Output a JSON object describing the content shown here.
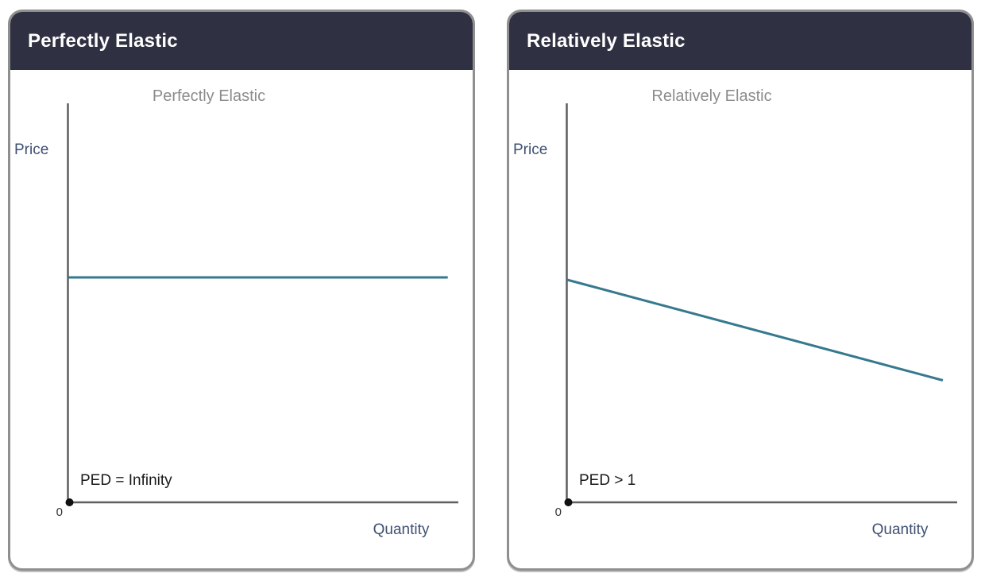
{
  "colors": {
    "header_bg": "#2f3142",
    "header_text": "#ffffff",
    "card_border": "#8f8f8f",
    "chart_title": "#8c8c8c",
    "axis_label": "#3f5072",
    "axis_line": "#5f5f5f",
    "curve": "#36798f",
    "annotation": "#1a1a1a",
    "origin_dot": "#111111"
  },
  "cards": [
    {
      "header": "Perfectly Elastic",
      "chart_title": "Perfectly Elastic",
      "y_axis_label": "Price",
      "x_axis_label": "Quantity",
      "origin_label": "0",
      "annotation": "PED = Infinity"
    },
    {
      "header": "Relatively Elastic",
      "chart_title": "Relatively Elastic",
      "y_axis_label": "Price",
      "x_axis_label": "Quantity",
      "origin_label": "0",
      "annotation": "PED > 1"
    }
  ],
  "chart_data": [
    {
      "type": "line",
      "title": "Perfectly Elastic",
      "xlabel": "Quantity",
      "ylabel": "Price",
      "origin_label": "0",
      "annotation": "PED = Infinity",
      "axes_numeric": false,
      "grid": false,
      "legend": false,
      "x_range_normalized": [
        0,
        1
      ],
      "y_range_normalized": [
        0,
        1
      ],
      "series": [
        {
          "color": "#36798f",
          "points_normalized": [
            {
              "x": 0.001,
              "y": 0.566
            },
            {
              "x": 0.98,
              "y": 0.566
            }
          ]
        }
      ]
    },
    {
      "type": "line",
      "title": "Relatively Elastic",
      "xlabel": "Quantity",
      "ylabel": "Price",
      "origin_label": "0",
      "annotation": "PED > 1",
      "axes_numeric": false,
      "grid": false,
      "legend": false,
      "x_range_normalized": [
        0,
        1
      ],
      "y_range_normalized": [
        0,
        1
      ],
      "series": [
        {
          "color": "#36798f",
          "points_normalized": [
            {
              "x": 0.001,
              "y": 0.56
            },
            {
              "x": 0.97,
              "y": 0.307
            }
          ]
        }
      ]
    }
  ]
}
